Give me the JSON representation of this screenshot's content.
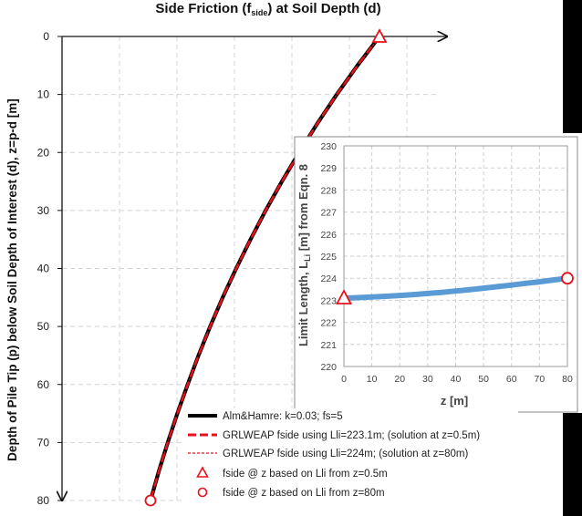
{
  "chart_data": [
    {
      "type": "line",
      "title": "Side Friction (f",
      "title_subscript": "side",
      "title_suffix": ") at Soil Depth (d)",
      "ylabel": "Depth of Pile Tip (p) below Soil Depth of Interest (d), z=p-d [m]",
      "xlabel": "",
      "ylim": [
        0,
        80
      ],
      "y_inverted": true,
      "y_ticks": [
        "0",
        "10",
        "20",
        "30",
        "40",
        "50",
        "60",
        "70",
        "80"
      ],
      "x_tick_labels_shown": false,
      "grid": true,
      "legend_placement": "bottom-right",
      "legend": [
        "Alm&Hamre: k=0.03; fs=5",
        "GRLWEAP fside using Lli=223.1m; (solution at z=0.5m)",
        "GRLWEAP fside using Lli=224m; (solution at z=80m)",
        "fside @ z based on Lli from z=0.5m",
        "fside @ z based on Lli from z=80m"
      ],
      "series": [
        {
          "name": "Alm&Hamre: k=0.03; fs=5",
          "color": "#000000",
          "z": [
            0,
            5,
            10,
            15,
            20,
            25,
            30,
            35,
            40,
            45,
            50,
            55,
            60,
            65,
            70,
            75,
            80
          ],
          "fside_relative": [
            1.0,
            0.917,
            0.839,
            0.766,
            0.697,
            0.632,
            0.571,
            0.514,
            0.46,
            0.409,
            0.362,
            0.318,
            0.277,
            0.238,
            0.202,
            0.168,
            0.137
          ]
        },
        {
          "name": "GRLWEAP fside using Lli=223.1m; (solution at z=0.5m)",
          "color": "#e8101a",
          "z": [
            0,
            5,
            10,
            15,
            20,
            25,
            30,
            35,
            40,
            45,
            50,
            55,
            60,
            65,
            70,
            75,
            80
          ],
          "fside_relative": [
            1.0,
            0.917,
            0.839,
            0.766,
            0.697,
            0.632,
            0.571,
            0.514,
            0.46,
            0.409,
            0.362,
            0.318,
            0.277,
            0.238,
            0.202,
            0.168,
            0.137
          ]
        },
        {
          "name": "GRLWEAP fside using Lli=224m; (solution at z=80m)",
          "color": "#e8101a",
          "z": [
            0,
            5,
            10,
            15,
            20,
            25,
            30,
            35,
            40,
            45,
            50,
            55,
            60,
            65,
            70,
            75,
            80
          ],
          "fside_relative": [
            1.0,
            0.917,
            0.839,
            0.766,
            0.697,
            0.632,
            0.571,
            0.514,
            0.46,
            0.409,
            0.362,
            0.318,
            0.277,
            0.238,
            0.202,
            0.168,
            0.137
          ]
        },
        {
          "name": "fside @ z based on Lli from z=0.5m",
          "color": "#e8101a",
          "marker": "triangle",
          "z": [
            0
          ],
          "fside_relative": [
            1.0
          ]
        },
        {
          "name": "fside @ z based on Lli from z=80m",
          "color": "#e8101a",
          "marker": "circle",
          "z": [
            80
          ],
          "fside_relative": [
            0.137
          ]
        }
      ]
    },
    {
      "type": "scatter",
      "title": "",
      "xlabel": "z [m]",
      "ylabel": "Limit Length, L",
      "ylabel_subscript": "Li",
      "ylabel_suffix": " [m] from Eqn. 8",
      "xlim": [
        0,
        80
      ],
      "ylim": [
        220,
        230
      ],
      "x_ticks": [
        "0",
        "10",
        "20",
        "30",
        "40",
        "50",
        "60",
        "70",
        "80"
      ],
      "y_ticks": [
        "220",
        "221",
        "222",
        "223",
        "224",
        "225",
        "226",
        "227",
        "228",
        "229",
        "230"
      ],
      "grid": true,
      "series": [
        {
          "name": "",
          "color": "#5b9bd5",
          "x": [
            0.5,
            5,
            10,
            15,
            20,
            25,
            30,
            35,
            40,
            45,
            50,
            55,
            60,
            65,
            70,
            75,
            80
          ],
          "y": [
            223.1,
            223.12,
            223.15,
            223.18,
            223.22,
            223.26,
            223.31,
            223.36,
            223.42,
            223.48,
            223.55,
            223.62,
            223.69,
            223.77,
            223.84,
            223.92,
            224.0
          ]
        }
      ],
      "markers": [
        {
          "label": "fside @ z based on Lli from z=0.5m",
          "marker": "triangle",
          "x": 0,
          "y": 223.1,
          "color": "#e8101a"
        },
        {
          "label": "fside @ z based on Lli from z=80m",
          "marker": "circle",
          "x": 80,
          "y": 224.0,
          "color": "#e8101a"
        }
      ]
    }
  ]
}
